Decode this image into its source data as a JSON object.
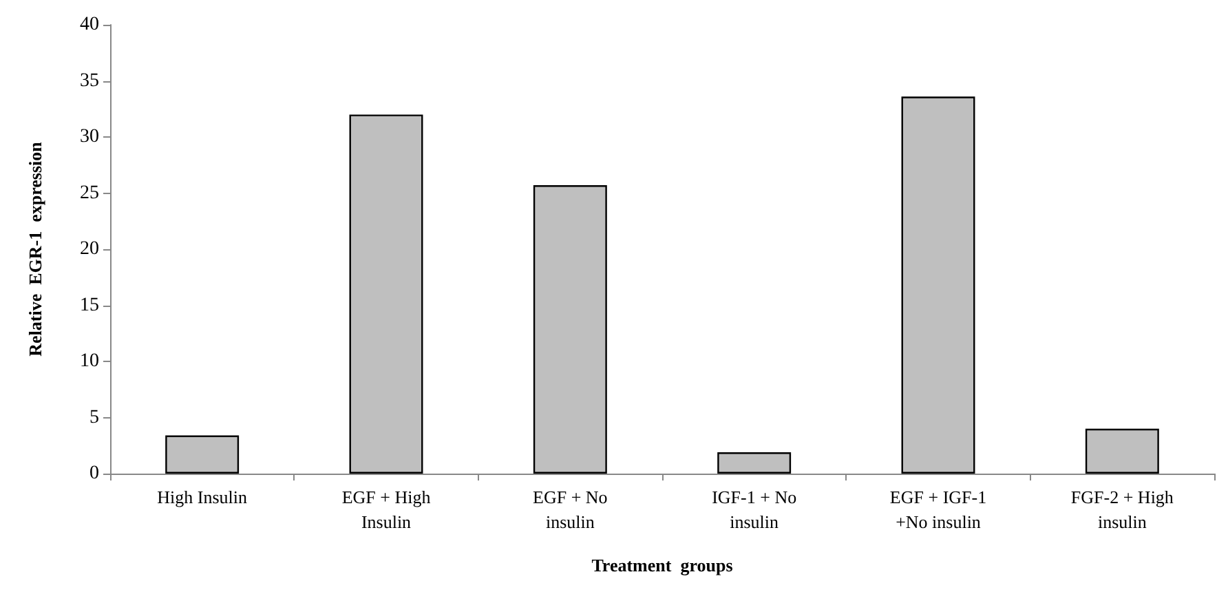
{
  "chart_data": {
    "type": "bar",
    "xlabel": "Treatment  groups",
    "ylabel": "Relative  EGR-1  expression",
    "categories": [
      "High Insulin",
      "EGF + High\nInsulin",
      "EGF + No\ninsulin",
      "IGF-1 + No\ninsulin",
      "EGF + IGF-1\n+No insulin",
      "FGF-2 + High\ninsulin"
    ],
    "values": [
      3.4,
      32,
      25.7,
      1.9,
      33.6,
      4.0
    ],
    "color": "#bfbfbf",
    "ylim": [
      0,
      40
    ],
    "yticks": [
      0,
      5,
      10,
      15,
      20,
      25,
      30,
      35,
      40
    ],
    "grid": false
  }
}
